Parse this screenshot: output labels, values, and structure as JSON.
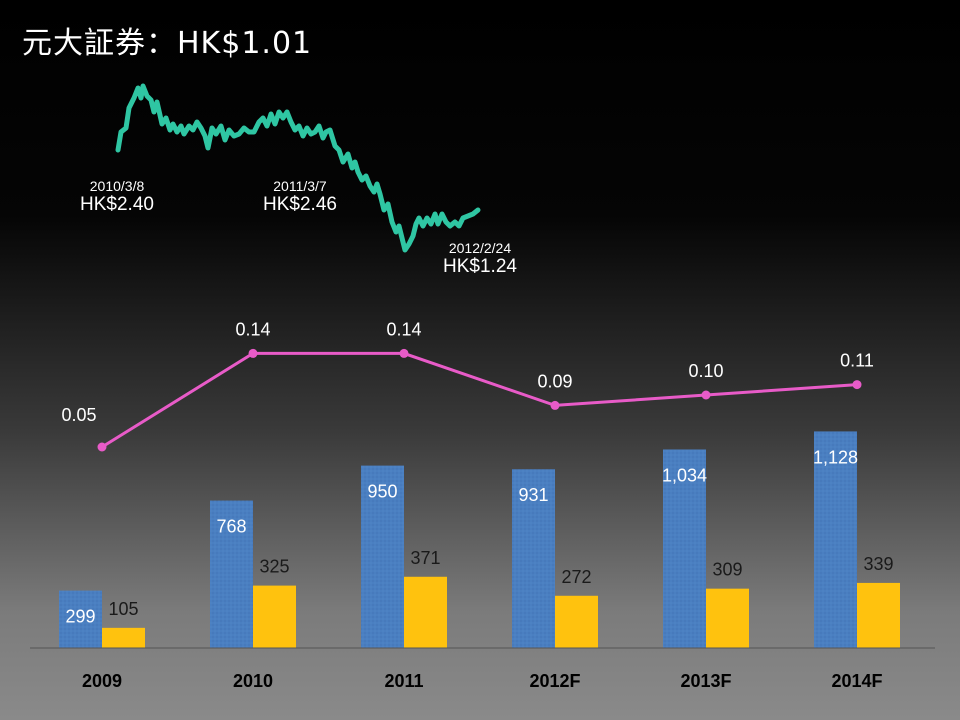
{
  "title": "元大証券：HK$1.01",
  "price_annotations": [
    {
      "date": "2010/3/8",
      "price": "HK$2.40"
    },
    {
      "date": "2011/3/7",
      "price": "HK$2.46"
    },
    {
      "date": "2012/2/24",
      "price": "HK$1.24"
    }
  ],
  "colors": {
    "price_line": "#2fc6a3",
    "eps_line": "#e85bc8",
    "blue_bar": "#4a7fc1",
    "yellow_bar": "#ffc20e"
  },
  "chart_data": [
    {
      "type": "line",
      "title": "",
      "x": [
        "2010/3/8",
        "2011/3/7",
        "2012/2/24"
      ],
      "values": [
        2.4,
        2.46,
        1.24
      ],
      "note_unit": "HK$"
    },
    {
      "type": "line",
      "categories": [
        "2009",
        "2010",
        "2011",
        "2012F",
        "2013F",
        "2014F"
      ],
      "values": [
        0.05,
        0.14,
        0.14,
        0.09,
        0.1,
        0.11
      ],
      "labels": [
        "0.05",
        "0.14",
        "0.14",
        "0.09",
        "0.10",
        "0.11"
      ],
      "ylim": [
        0,
        0.2
      ]
    },
    {
      "type": "bar",
      "categories": [
        "2009",
        "2010",
        "2011",
        "2012F",
        "2013F",
        "2014F"
      ],
      "series": [
        {
          "values": [
            299,
            768,
            950,
            931,
            1034,
            1128
          ],
          "labels": [
            "299",
            "768",
            "950",
            "931",
            "1,034",
            "1,128"
          ]
        },
        {
          "values": [
            105,
            325,
            371,
            272,
            309,
            339
          ],
          "labels": [
            "105",
            "325",
            "371",
            "272",
            "309",
            "339"
          ]
        }
      ],
      "ylim": [
        0,
        1250
      ],
      "grid": false
    }
  ]
}
